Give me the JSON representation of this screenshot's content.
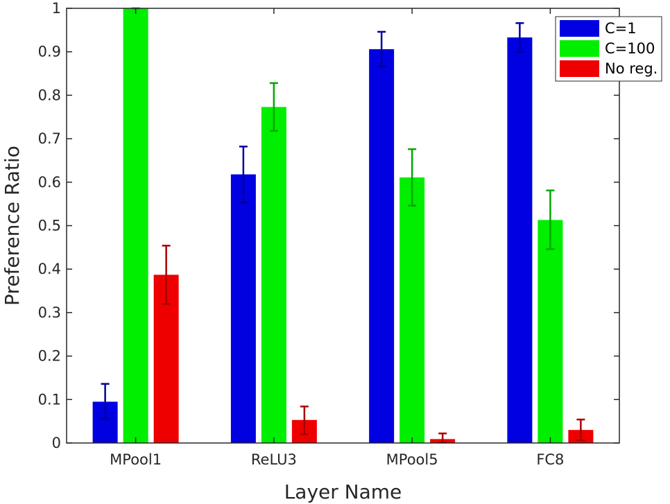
{
  "chart_data": {
    "type": "bar",
    "title": "",
    "xlabel": "Layer Name",
    "ylabel": "Preference Ratio",
    "ylim": [
      0,
      1
    ],
    "yticks": [
      0,
      0.1,
      0.2,
      0.3,
      0.4,
      0.5,
      0.6,
      0.7,
      0.8,
      0.9,
      1
    ],
    "ytick_labels": [
      "0",
      "0.1",
      "0.2",
      "0.3",
      "0.4",
      "0.5",
      "0.6",
      "0.7",
      "0.8",
      "0.9",
      "1"
    ],
    "categories": [
      "MPool1",
      "ReLU3",
      "MPool5",
      "FC8"
    ],
    "grid": false,
    "legend_position": "top-right",
    "series": [
      {
        "name": "C=1",
        "color": "#0000e0",
        "error_color": "#00009a",
        "values": [
          0.095,
          0.618,
          0.906,
          0.933
        ],
        "err_low": [
          0.055,
          0.553,
          0.866,
          0.9
        ],
        "err_high": [
          0.136,
          0.682,
          0.946,
          0.966
        ]
      },
      {
        "name": "C=100",
        "color": "#00ee00",
        "error_color": "#00a800",
        "values": [
          1.0,
          0.773,
          0.611,
          0.513
        ],
        "err_low": [
          1.0,
          0.718,
          0.546,
          0.446
        ],
        "err_high": [
          1.0,
          0.828,
          0.676,
          0.581
        ]
      },
      {
        "name": "No reg.",
        "color": "#ee0000",
        "error_color": "#a80000",
        "values": [
          0.387,
          0.053,
          0.009,
          0.03
        ],
        "err_low": [
          0.32,
          0.02,
          0.001,
          0.006
        ],
        "err_high": [
          0.454,
          0.084,
          0.022,
          0.054
        ]
      }
    ]
  }
}
